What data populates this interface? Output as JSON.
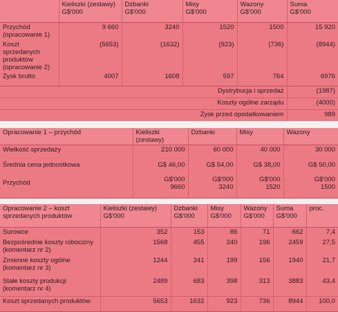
{
  "table1": {
    "columns": [
      {
        "name": "Kieliszki (zestawy)",
        "unit": "G$'000"
      },
      {
        "name": "Dzbanki",
        "unit": "G$'000"
      },
      {
        "name": "Misy",
        "unit": "G$'000"
      },
      {
        "name": "Wazony",
        "unit": "G$'000"
      },
      {
        "name": "Suma",
        "unit": "G$'000"
      }
    ],
    "rows": [
      {
        "label": "Przychód (opracowanie 1)",
        "values": [
          "9 660",
          "3240",
          "1520",
          "1500",
          "15 920"
        ]
      },
      {
        "label": "Koszt sprzedanych produktów (opracowanie 2)",
        "values": [
          "(5653)",
          "(1632)",
          "(923)",
          "(736)",
          "(8944)"
        ]
      },
      {
        "label": "Zysk brutto",
        "values": [
          "4007",
          "1608",
          "597",
          "764",
          "6976"
        ]
      }
    ],
    "summary": [
      {
        "label": "Dystrybucja i sprzedaż",
        "value": "(1987)"
      },
      {
        "label": "Koszty ogólne zarządu",
        "value": "(4000)"
      },
      {
        "label": "Zysk przed opodatkowaniem",
        "value": "989"
      }
    ]
  },
  "table2": {
    "title": "Opracowanie 1 – przychód",
    "columns": [
      "Kieliszki (zestawy)",
      "Dzbanki",
      "Misy",
      "Wazony"
    ],
    "rows": [
      {
        "label": "Wielkość sprzedaży",
        "values": [
          "210 000",
          "60 000",
          "40 000",
          "30 000"
        ]
      },
      {
        "label": "Średnia cena jednostkowa",
        "values": [
          "G$ 46,00",
          "G$ 54,00",
          "G$ 38,00",
          "G$ 50,00"
        ]
      }
    ],
    "revenue": {
      "label": "Przychód",
      "unit": "G$'000",
      "values": [
        "9660",
        "3240",
        "1520",
        "1500"
      ]
    }
  },
  "table3": {
    "title": "Opracowanie 2 – koszt sprzedanych produktów",
    "columns": [
      {
        "name": "Kieliszki (zestawy)",
        "unit": "G$'000"
      },
      {
        "name": "Dzbanki",
        "unit": "G$'000"
      },
      {
        "name": "Misy",
        "unit": "G$'000"
      },
      {
        "name": "Wazony",
        "unit": "G$'000"
      },
      {
        "name": "Suma",
        "unit": "G$'000"
      },
      {
        "name": "proc."
      }
    ],
    "rows": [
      {
        "label": "Surowce",
        "values": [
          "352",
          "153",
          "86",
          "71",
          "662",
          "7,4"
        ]
      },
      {
        "label": "Bezpośrednie koszty robocizny (komentarz nr 2)",
        "values": [
          "1568",
          "455",
          "240",
          "196",
          "2459",
          "27,5"
        ]
      },
      {
        "label": "Zmienne koszty ogólne (komentarz nr 3)",
        "values": [
          "1244",
          "341",
          "199",
          "156",
          "1940",
          "21,7"
        ]
      },
      {
        "label": "Stałe koszty produkcji (komentarz nr 4)",
        "values": [
          "2489",
          "683",
          "398",
          "313",
          "3883",
          "43,4"
        ]
      },
      {
        "label": "Koszt sprzedanych produktów",
        "values": [
          "5653",
          "1632",
          "923",
          "736",
          "8944",
          "100,0"
        ]
      }
    ]
  }
}
